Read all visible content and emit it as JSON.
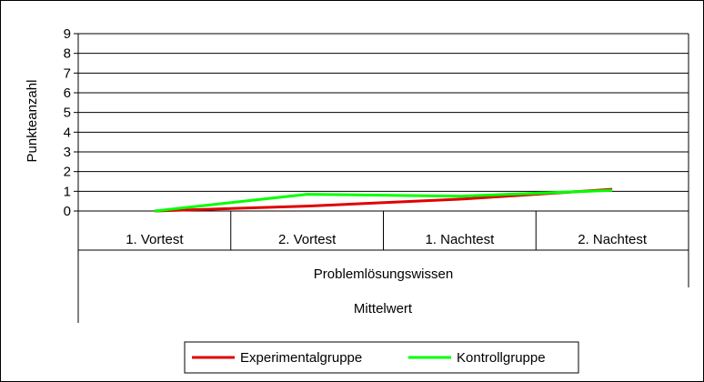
{
  "chart_data": {
    "type": "line",
    "ylabel": "Punkteanzahl",
    "ylim": [
      0,
      9
    ],
    "yticks": [
      0,
      1,
      2,
      3,
      4,
      5,
      6,
      7,
      8,
      9
    ],
    "categories": [
      "1. Vortest",
      "2. Vortest",
      "1. Nachtest",
      "2. Nachtest"
    ],
    "category_groups": [
      "Problemlösungswissen",
      "Mittelwert"
    ],
    "grid": true,
    "legend_position": "bottom",
    "series": [
      {
        "name": "Experimentalgruppe",
        "color": "#e00000",
        "values": [
          0.0,
          0.25,
          0.6,
          1.1
        ]
      },
      {
        "name": "Kontrollgruppe",
        "color": "#00ff00",
        "values": [
          0.0,
          0.85,
          0.75,
          1.05
        ]
      }
    ]
  }
}
